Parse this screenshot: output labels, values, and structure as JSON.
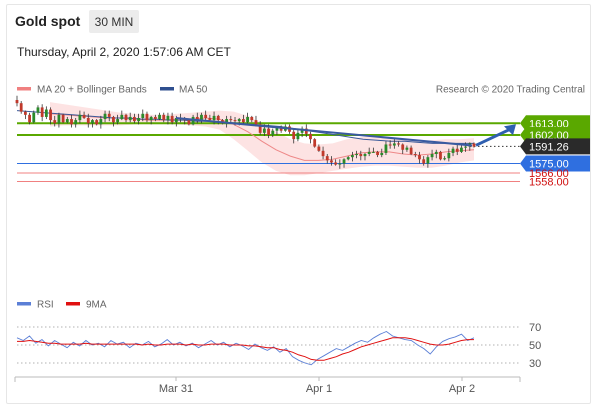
{
  "header": {
    "title": "Gold spot",
    "timeframe": "30 MIN",
    "datetime": "Thursday, April 2, 2020 1:57:06 AM CET"
  },
  "legend": {
    "items": [
      {
        "label": "MA 20 + Bollinger Bands",
        "color": "#f08080"
      },
      {
        "label": "MA 50",
        "color": "#2f4f8f"
      }
    ],
    "credit": "Research © 2020 Trading Central"
  },
  "rsi_legend": {
    "items": [
      {
        "label": "RSI",
        "color": "#5b7fd6"
      },
      {
        "label": "9MA",
        "color": "#e01010"
      }
    ]
  },
  "colors": {
    "resistance": "#5aa800",
    "pivot": "#2f6fe0",
    "support": "#f08080",
    "support_text": "#d01010",
    "last_price_box": "#2a2a2a",
    "up_candle": "#2a8a2a",
    "down_candle": "#c0392b",
    "band_fill": "#fde0e0",
    "ma50": "#3a5a9a",
    "trendline": "#3a5aa0",
    "arrow": "#2f5fb0"
  },
  "chart_data": [
    {
      "type": "candlestick",
      "title": "Gold spot",
      "x_ticks": [
        "Mar 31",
        "Apr 1",
        "Apr 2"
      ],
      "ylim": [
        1550,
        1635
      ],
      "levels": [
        {
          "label": "1613.00",
          "value": 1613.0,
          "kind": "resistance"
        },
        {
          "label": "1602.00",
          "value": 1602.0,
          "kind": "resistance"
        },
        {
          "label": "1591.26",
          "value": 1591.26,
          "kind": "last"
        },
        {
          "label": "1575.00",
          "value": 1575.0,
          "kind": "pivot"
        },
        {
          "label": "1566.00",
          "value": 1566.0,
          "kind": "support"
        },
        {
          "label": "1558.00",
          "value": 1558.0,
          "kind": "support"
        }
      ],
      "closes": [
        1632,
        1624,
        1621,
        1614,
        1623,
        1628,
        1619,
        1626,
        1616,
        1613,
        1621,
        1614,
        1617,
        1612,
        1616,
        1621,
        1618,
        1613,
        1616,
        1612,
        1617,
        1622,
        1619,
        1614,
        1617,
        1621,
        1616,
        1619,
        1615,
        1618,
        1622,
        1616,
        1619,
        1617,
        1621,
        1616,
        1620,
        1614,
        1618,
        1617,
        1616,
        1612,
        1619,
        1616,
        1621,
        1618,
        1616,
        1620,
        1616,
        1613,
        1617,
        1616,
        1615,
        1617,
        1614,
        1619,
        1616,
        1612,
        1604,
        1608,
        1602,
        1606,
        1609,
        1606,
        1610,
        1605,
        1598,
        1604,
        1608,
        1603,
        1598,
        1591,
        1587,
        1582,
        1578,
        1576,
        1574,
        1575,
        1579,
        1581,
        1583,
        1584,
        1582,
        1584,
        1586,
        1586,
        1583,
        1585,
        1593,
        1592,
        1594,
        1593,
        1588,
        1590,
        1584,
        1583,
        1579,
        1575,
        1581,
        1584,
        1586,
        1579,
        1580,
        1585,
        1589,
        1586,
        1590,
        1591,
        1594,
        1591
      ],
      "ma50": [
        1625,
        1624,
        1623,
        1622,
        1621,
        1620,
        1619,
        1618,
        1618,
        1617,
        1617,
        1616,
        1616,
        1615,
        1615,
        1614,
        1613,
        1612,
        1611,
        1610,
        1608,
        1606,
        1604,
        1602,
        1600,
        1598,
        1597,
        1596,
        1596,
        1595,
        1594,
        1594,
        1594,
        1594
      ],
      "ma20": [
        1622,
        1621,
        1620,
        1619,
        1618,
        1618,
        1617,
        1616,
        1616,
        1617,
        1617,
        1618,
        1617,
        1612,
        1605,
        1596,
        1588,
        1582,
        1578,
        1578,
        1579,
        1582,
        1585,
        1586,
        1586,
        1584,
        1583,
        1584,
        1586,
        1587,
        1588
      ],
      "bb_upper": [
        1633,
        1631,
        1629,
        1627,
        1625,
        1623,
        1622,
        1621,
        1621,
        1622,
        1623,
        1624,
        1625,
        1624,
        1620,
        1613,
        1605,
        1598,
        1594,
        1593,
        1594,
        1598,
        1600,
        1601,
        1600,
        1598,
        1596,
        1597,
        1598,
        1598,
        1599
      ],
      "bb_lower": [
        1610,
        1611,
        1611,
        1611,
        1611,
        1611,
        1612,
        1612,
        1612,
        1612,
        1611,
        1610,
        1607,
        1598,
        1587,
        1576,
        1568,
        1564,
        1564,
        1566,
        1568,
        1570,
        1572,
        1573,
        1573,
        1572,
        1571,
        1571,
        1573,
        1576,
        1578
      ],
      "trendline": [
        1618,
        1592
      ],
      "projection": [
        1591.26,
        1613
      ]
    },
    {
      "type": "line",
      "title": "RSI",
      "y_ticks": [
        "70",
        "50",
        "30"
      ],
      "ylim": [
        20,
        80
      ],
      "rsi": [
        58,
        55,
        60,
        52,
        56,
        49,
        55,
        51,
        47,
        53,
        49,
        55,
        50,
        52,
        48,
        55,
        51,
        53,
        47,
        52,
        50,
        54,
        48,
        51,
        56,
        50,
        53,
        49,
        52,
        47,
        51,
        55,
        50,
        53,
        48,
        52,
        49,
        45,
        51,
        47,
        44,
        48,
        42,
        46,
        37,
        33,
        30,
        28,
        34,
        38,
        42,
        46,
        44,
        48,
        52,
        55,
        53,
        58,
        62,
        65,
        60,
        58,
        56,
        55,
        50,
        46,
        40,
        48,
        54,
        57,
        59,
        62,
        55,
        58
      ],
      "rsi_9ma": [
        54,
        54,
        55,
        54,
        53,
        52,
        52,
        51,
        51,
        51,
        51,
        52,
        51,
        51,
        51,
        51,
        51,
        51,
        51,
        51,
        50,
        51,
        50,
        50,
        51,
        51,
        51,
        50,
        51,
        50,
        50,
        51,
        51,
        51,
        50,
        50,
        50,
        49,
        49,
        48,
        47,
        47,
        45,
        44,
        42,
        39,
        37,
        34,
        33,
        33,
        35,
        37,
        40,
        42,
        45,
        48,
        50,
        52,
        54,
        56,
        58,
        58,
        58,
        57,
        55,
        53,
        51,
        50,
        50,
        51,
        53,
        55,
        56,
        56
      ]
    }
  ]
}
